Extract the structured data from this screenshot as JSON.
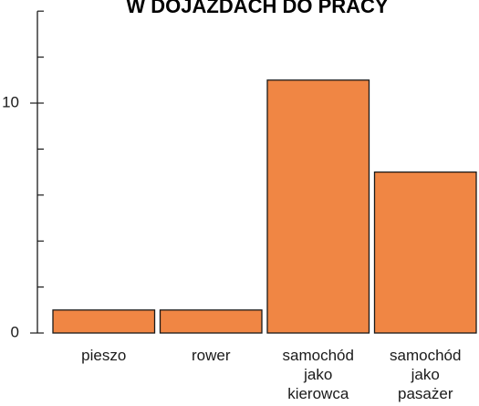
{
  "chart_data": {
    "type": "bar",
    "title": "W DOJAZDACH DO PRACY",
    "categories": [
      "pieszo",
      "rower",
      "samochód jako kierowca",
      "samochód jako pasażer"
    ],
    "category_lines": [
      [
        "pieszo"
      ],
      [
        "rower"
      ],
      [
        "samochód",
        "jako",
        "kierowca"
      ],
      [
        "samochód",
        "jako",
        "pasażer"
      ]
    ],
    "values": [
      1,
      1,
      11,
      7
    ],
    "ylim": [
      0,
      14
    ],
    "y_tick_labels": [
      {
        "value": 0,
        "label": "0"
      },
      {
        "value": 10,
        "label": "10"
      }
    ],
    "y_minor_ticks": [
      0,
      2,
      4,
      6,
      8,
      10,
      12,
      14
    ],
    "bar_color": "#f08644",
    "bar_edge_color": "#1a1a1a",
    "xlabel": "",
    "ylabel": "",
    "grid": false
  }
}
